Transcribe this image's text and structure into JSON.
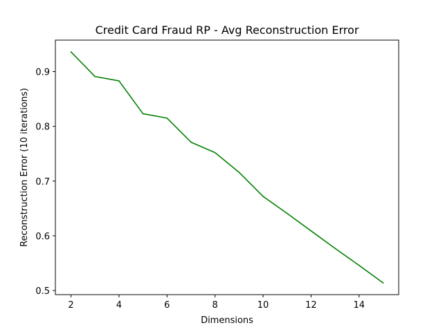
{
  "chart_data": {
    "type": "line",
    "title": "Credit Card Fraud RP - Avg Reconstruction Error",
    "xlabel": "Dimensions",
    "ylabel": "Reconstruction Error (10 iterations)",
    "xlim": [
      1.35,
      15.65
    ],
    "ylim": [
      0.4925,
      0.9575
    ],
    "x_ticks": [
      2,
      4,
      6,
      8,
      10,
      12,
      14
    ],
    "y_ticks": [
      0.5,
      0.6,
      0.7,
      0.8,
      0.9
    ],
    "grid": false,
    "legend": "none",
    "series": [
      {
        "color": "#008000",
        "x": [
          2,
          3,
          4,
          5,
          6,
          7,
          8,
          9,
          10,
          11,
          12,
          13,
          14,
          15
        ],
        "y": [
          0.936,
          0.891,
          0.883,
          0.823,
          0.815,
          0.771,
          0.752,
          0.716,
          0.672,
          0.641,
          0.609,
          0.577,
          0.546,
          0.514
        ]
      }
    ]
  }
}
